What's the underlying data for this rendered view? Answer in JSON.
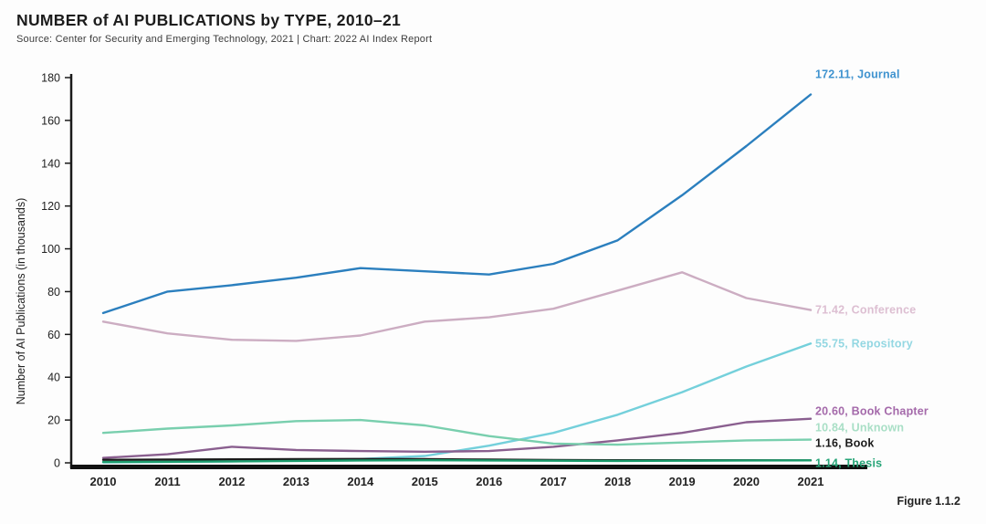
{
  "header": {
    "title": "NUMBER of AI PUBLICATIONS by TYPE, 2010–21",
    "source": "Source: Center for Security and Emerging Technology, 2021 | Chart: 2022 AI Index Report"
  },
  "footer": {
    "figure_label": "Figure 1.1.2"
  },
  "chart_data": {
    "type": "line",
    "title": "NUMBER of AI PUBLICATIONS by TYPE, 2010–21",
    "xlabel": "",
    "ylabel": "Number of AI Publications (in thousands)",
    "ylim": [
      0,
      180
    ],
    "ytick_step": 20,
    "grid": false,
    "legend_position": "end-of-line right labels",
    "categories": [
      2010,
      2011,
      2012,
      2013,
      2014,
      2015,
      2016,
      2017,
      2018,
      2019,
      2020,
      2021
    ],
    "series": [
      {
        "name": "Journal",
        "end_label": "172.11, Journal",
        "end_value": 172.11,
        "color": "#2b7fbe",
        "label_color": "#3f93cf",
        "label_dy": -22,
        "values": [
          70,
          80,
          83,
          86.5,
          91,
          89.5,
          88,
          93,
          104,
          125,
          148,
          172.11
        ]
      },
      {
        "name": "Conference",
        "end_label": "71.42, Conference",
        "end_value": 71.42,
        "color": "#ccadc2",
        "label_color": "#ddbfd2",
        "label_dy": 0,
        "values": [
          66,
          60.5,
          57.5,
          57,
          59.5,
          66,
          68,
          72,
          80.5,
          89,
          77,
          71.42
        ]
      },
      {
        "name": "Repository",
        "end_label": "55.75, Repository",
        "end_value": 55.75,
        "color": "#74d0db",
        "label_color": "#93d7e2",
        "label_dy": 0,
        "values": [
          0.2,
          0.4,
          0.7,
          1.1,
          1.8,
          3.2,
          8,
          14,
          22.5,
          33,
          45,
          55.75
        ]
      },
      {
        "name": "Book Chapter",
        "end_label": "20.60, Book Chapter",
        "end_value": 20.6,
        "color": "#8a5f8f",
        "label_color": "#a469aa",
        "label_dy": -8,
        "values": [
          2.3,
          4,
          7.5,
          6,
          5.5,
          5.2,
          5.5,
          7.5,
          10.5,
          14,
          19,
          20.6
        ]
      },
      {
        "name": "Unknown",
        "end_label": "10.84, Unknown",
        "end_value": 10.84,
        "color": "#79cfae",
        "label_color": "#a9dfc6",
        "label_dy": -13,
        "values": [
          14,
          16,
          17.5,
          19.5,
          20,
          17.5,
          12.5,
          9,
          8.5,
          9.5,
          10.5,
          10.84
        ]
      },
      {
        "name": "Book",
        "end_label": "1.16, Book",
        "end_value": 1.16,
        "color": "#1a1a1a",
        "label_color": "#1a1a1a",
        "label_dy": -19,
        "values": [
          1.4,
          1.5,
          1.6,
          1.7,
          1.8,
          1.7,
          1.5,
          1.3,
          1.2,
          1.2,
          1.2,
          1.16
        ]
      },
      {
        "name": "Thesis",
        "end_label": "1.14, Thesis",
        "end_value": 1.14,
        "color": "#1d9e6e",
        "label_color": "#27a578",
        "label_dy": 3,
        "values": [
          0.4,
          0.5,
          0.7,
          0.9,
          1.1,
          1.2,
          1.1,
          1.0,
          0.9,
          1.0,
          1.1,
          1.14
        ]
      }
    ]
  }
}
